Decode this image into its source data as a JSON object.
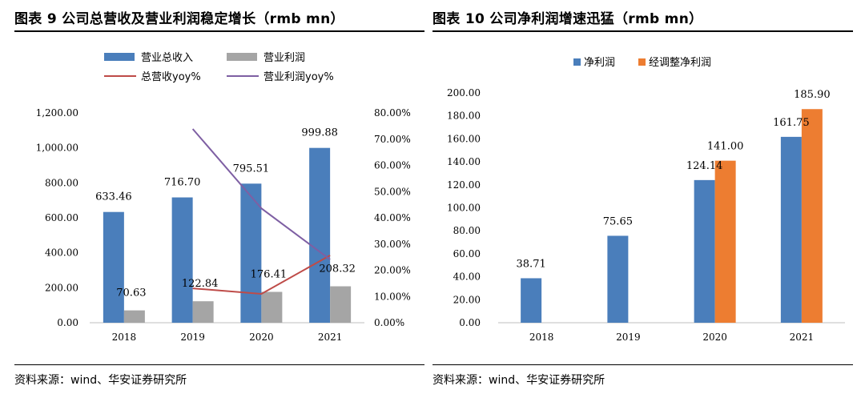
{
  "left": {
    "title": "图表 9 公司总营收及营业利润稳定增长（rmb mn）",
    "source": "资料来源：wind、华安证券研究所"
  },
  "right": {
    "title": "图表 10 公司净利润增速迅猛（rmb mn）",
    "source": "资料来源：wind、华安证券研究所"
  },
  "chart_data": [
    {
      "type": "bar",
      "categories": [
        "2018",
        "2019",
        "2020",
        "2021"
      ],
      "series": [
        {
          "name": "营业总收入",
          "axis": "left",
          "values": [
            633.46,
            716.7,
            795.51,
            999.88
          ],
          "labels": [
            "633.46",
            "716.70",
            "795.51",
            "999.88"
          ],
          "color": "#4a7ebb"
        },
        {
          "name": "营业利润",
          "axis": "left",
          "values": [
            70.63,
            122.84,
            176.41,
            208.32
          ],
          "labels": [
            "70.63",
            "122.84",
            "176.41",
            "208.32"
          ],
          "color": "#a5a5a5"
        },
        {
          "name": "总营收yoy%",
          "type": "line",
          "axis": "right",
          "x": [
            "2019",
            "2020",
            "2021"
          ],
          "values": [
            13.1,
            11.0,
            25.7
          ],
          "color": "#be4b48"
        },
        {
          "name": "营业利润yoy%",
          "type": "line",
          "axis": "right",
          "x": [
            "2019",
            "2020",
            "2021"
          ],
          "values": [
            73.9,
            43.6,
            24.1
          ],
          "color": "#7e5fa3"
        }
      ],
      "ylim": [
        0,
        1200
      ],
      "yticks": [
        "0.00",
        "200.00",
        "400.00",
        "600.00",
        "800.00",
        "1,000.00",
        "1,200.00"
      ],
      "y2lim": [
        0,
        80
      ],
      "y2ticks": [
        "0.00%",
        "10.00%",
        "20.00%",
        "30.00%",
        "40.00%",
        "50.00%",
        "60.00%",
        "70.00%",
        "80.00%"
      ],
      "legend": "top"
    },
    {
      "type": "bar",
      "categories": [
        "2018",
        "2019",
        "2020",
        "2021"
      ],
      "series": [
        {
          "name": "净利润",
          "values": [
            38.71,
            75.65,
            124.14,
            161.75
          ],
          "labels": [
            "38.71",
            "75.65",
            "124.14",
            "161.75"
          ],
          "color": "#4a7ebb"
        },
        {
          "name": "经调整净利润",
          "values": [
            null,
            null,
            141.0,
            185.9
          ],
          "labels": [
            "",
            "",
            "141.00",
            "185.90"
          ],
          "color": "#ed7d31"
        }
      ],
      "ylim": [
        0,
        200
      ],
      "yticks": [
        "0.00",
        "20.00",
        "40.00",
        "60.00",
        "80.00",
        "100.00",
        "120.00",
        "140.00",
        "160.00",
        "180.00",
        "200.00"
      ],
      "legend": "top"
    }
  ]
}
